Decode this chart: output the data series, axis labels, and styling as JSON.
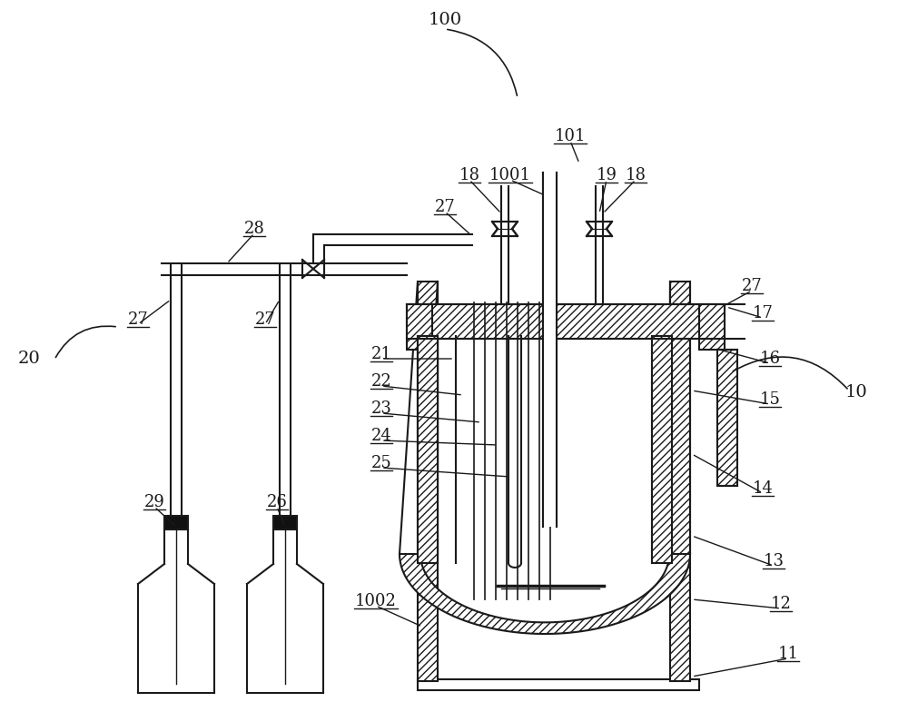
{
  "line_color": "#1a1a1a",
  "label_color": "#1a1a1a",
  "font_size": 13,
  "hatch_pattern": "////",
  "bg_color": "#ffffff"
}
